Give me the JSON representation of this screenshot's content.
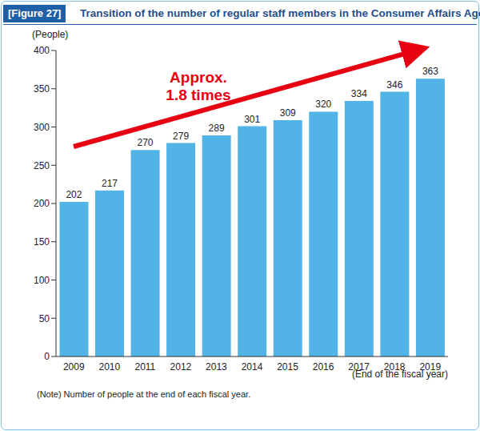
{
  "chart_data": {
    "type": "bar",
    "figure_label": "[Figure 27]",
    "title": "Transition of the number of regular staff members in the Consumer Affairs Agency",
    "y_label": "(People)",
    "x_label": "(End of the fiscal year)",
    "annotation": [
      "Approx.",
      "1.8 times"
    ],
    "note": "(Note) Number of people at the end of each fiscal year.",
    "categories": [
      "2009",
      "2010",
      "2011",
      "2012",
      "2013",
      "2014",
      "2015",
      "2016",
      "2017",
      "2018",
      "2019"
    ],
    "values": [
      202,
      217,
      270,
      279,
      289,
      301,
      309,
      320,
      334,
      346,
      363
    ],
    "color": "#52b4e6",
    "ylim": [
      0,
      400
    ],
    "yticks": [
      0,
      50,
      100,
      150,
      200,
      250,
      300,
      350,
      400
    ],
    "grid": false,
    "data_labels": true
  }
}
